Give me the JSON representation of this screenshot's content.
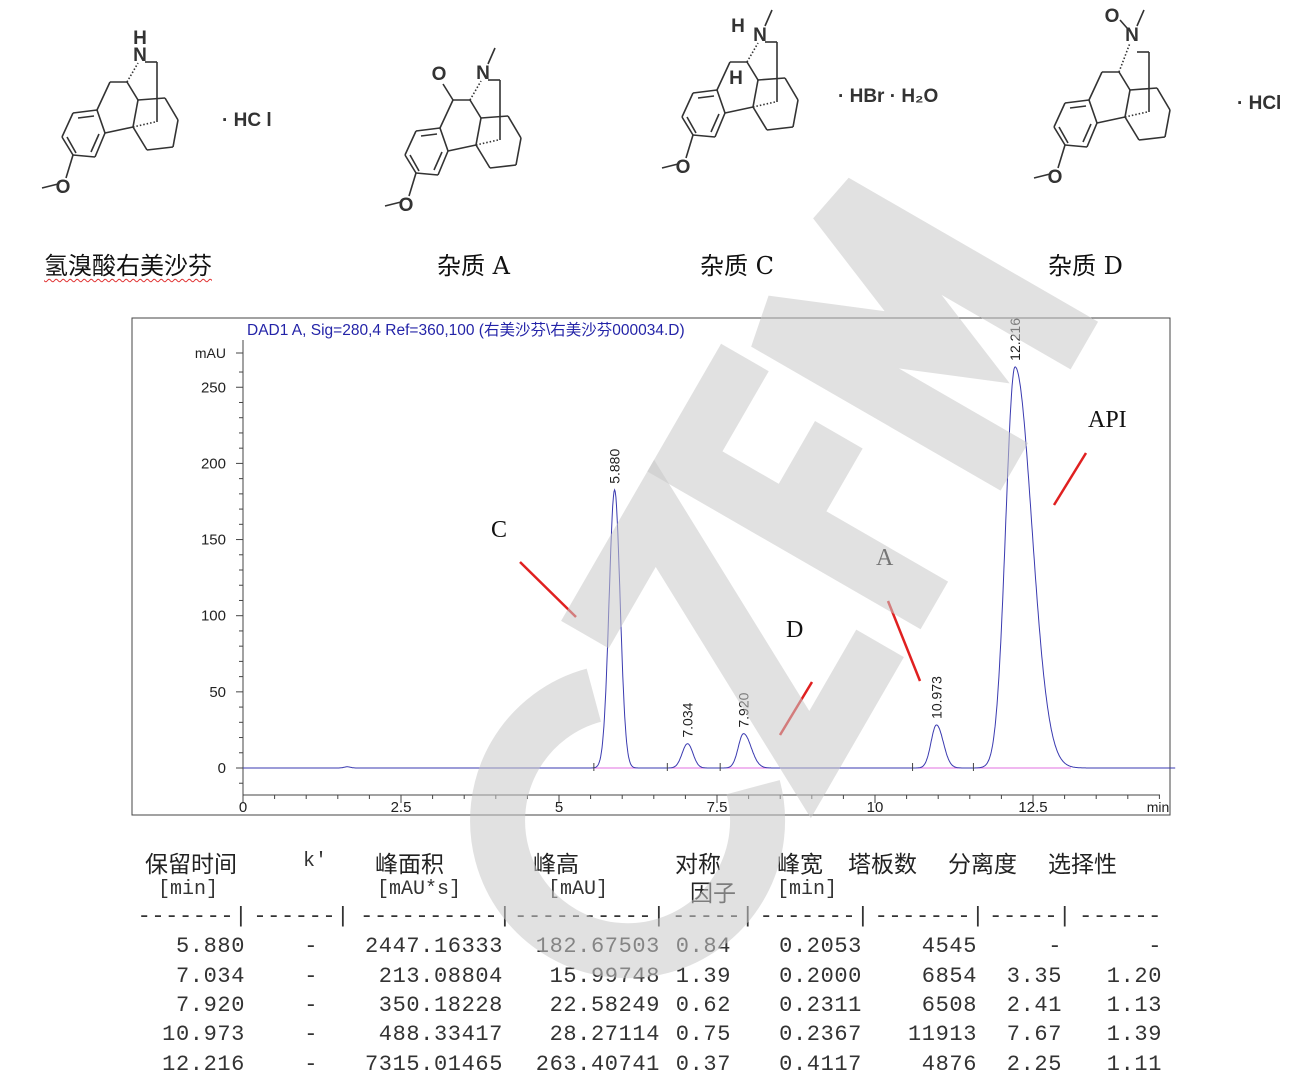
{
  "structures": [
    {
      "name": "氢溴酸右美沙芬",
      "salt": "· HC l"
    },
    {
      "name": "杂质 A",
      "salt": ""
    },
    {
      "name": "杂质 C",
      "salt": "· HBr · H₂O"
    },
    {
      "name": "杂质 D",
      "salt": "· HCl"
    }
  ],
  "atoms": {
    "N": "N",
    "H": "H",
    "O": "O"
  },
  "chart": {
    "title": "DAD1 A, Sig=280,4 Ref=360,100 (右美沙芬\\右美沙芬000034.D)",
    "annotations": [
      "C",
      "D",
      "A",
      "API"
    ]
  },
  "chart_data": {
    "type": "line",
    "title": "DAD1 A, Sig=280,4 Ref=360,100 (右美沙芬\\右美沙芬000034.D)",
    "xlabel": "min",
    "ylabel": "mAU",
    "xlim": [
      0,
      14.8
    ],
    "ylim": [
      -10,
      270
    ],
    "x_ticks": [
      "0",
      "2.5",
      "5",
      "7.5",
      "10",
      "12.5"
    ],
    "y_ticks": [
      "0",
      "50",
      "100",
      "150",
      "200",
      "250"
    ],
    "x_tick_values": [
      0,
      2.5,
      5,
      7.5,
      10,
      12.5
    ],
    "y_tick_values": [
      0,
      50,
      100,
      150,
      200,
      250
    ],
    "series": [
      {
        "peaks": [
          {
            "rt": 5.88,
            "label": "5.880",
            "height": 182.67503,
            "width": 0.2053,
            "symmetry": 0.84
          },
          {
            "rt": 7.034,
            "label": "7.034",
            "height": 15.99748,
            "width": 0.2,
            "symmetry": 1.39
          },
          {
            "rt": 7.92,
            "label": "7.920",
            "height": 22.58249,
            "width": 0.2311,
            "symmetry": 0.62
          },
          {
            "rt": 10.973,
            "label": "10.973",
            "height": 28.27114,
            "width": 0.2367,
            "symmetry": 0.75
          },
          {
            "rt": 12.216,
            "label": "12.216",
            "height": 263.40741,
            "width": 0.4117,
            "symmetry": 0.37
          }
        ]
      }
    ],
    "trace_color": "#3a3ab0",
    "baseline_color": "#e070e0",
    "grid": false
  },
  "table": {
    "header1": [
      "保留时间",
      "k'",
      "峰面积",
      "峰高",
      "对称",
      "峰宽",
      "塔板数",
      "分离度",
      "选择性"
    ],
    "header2": [
      "[min]",
      "[mAU*s]",
      "[mAU]",
      "因子",
      "[min]"
    ],
    "separator": [
      "-------|",
      "------|",
      "----------|",
      "----------|",
      "-----|",
      "-------|",
      "-------|",
      "-----|",
      "------"
    ],
    "rows": [
      [
        "5.880",
        "-",
        "2447.16333",
        "182.67503",
        "0.84",
        "0.2053",
        "4545",
        "-",
        "-"
      ],
      [
        "7.034",
        "-",
        "213.08804",
        "15.99748",
        "1.39",
        "0.2000",
        "6854",
        "3.35",
        "1.20"
      ],
      [
        "7.920",
        "-",
        "350.18228",
        "22.58249",
        "0.62",
        "0.2311",
        "6508",
        "2.41",
        "1.13"
      ],
      [
        "10.973",
        "-",
        "488.33417",
        "28.27114",
        "0.75",
        "0.2367",
        "11913",
        "7.67",
        "1.39"
      ],
      [
        "12.216",
        "-",
        "7315.01465",
        "263.40741",
        "0.37",
        "0.4117",
        "4876",
        "2.25",
        "1.11"
      ]
    ]
  },
  "watermark": "CZFM",
  "colors": {
    "annotation_line": "#e02020",
    "watermark": "#c8c8c8",
    "title": "#2424a8"
  }
}
